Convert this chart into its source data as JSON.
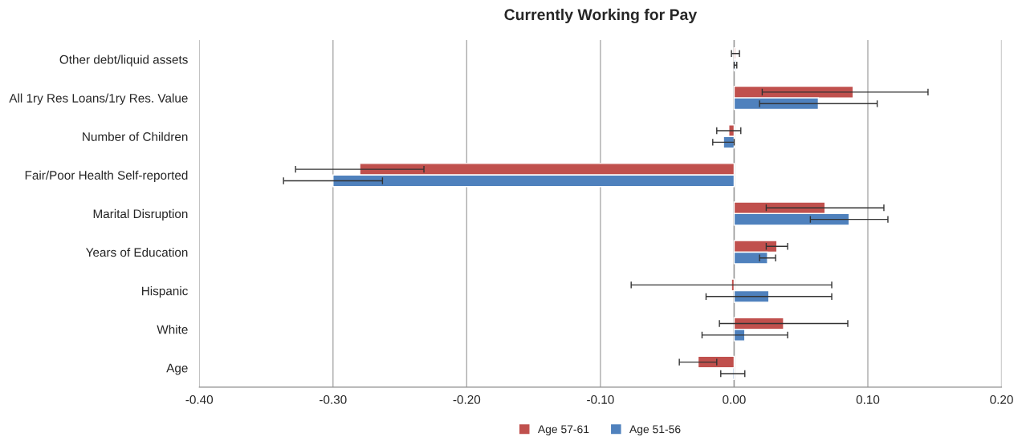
{
  "chart_data": {
    "type": "bar",
    "orientation": "horizontal",
    "title": "Currently Working for Pay",
    "categories": [
      "Other debt/liquid assets",
      "All 1ry Res Loans/1ry Res. Value",
      "Number of Children",
      "Fair/Poor Health Self-reported",
      "Marital Disruption",
      "Years of Education",
      "Hispanic",
      "White",
      "Age"
    ],
    "series": [
      {
        "name": "Age 57-61",
        "color": "#c0504d",
        "values": [
          0.001,
          0.089,
          -0.004,
          -0.28,
          0.068,
          0.032,
          -0.002,
          0.037,
          -0.027
        ],
        "errors": [
          0.003,
          [
            0.021,
            0.145
          ],
          0.009,
          0.048,
          0.044,
          0.008,
          0.075,
          0.048,
          0.014
        ]
      },
      {
        "name": "Age 51-56",
        "color": "#4f81bd",
        "values": [
          0.001,
          0.063,
          -0.008,
          -0.3,
          0.086,
          0.025,
          0.026,
          0.008,
          -0.001
        ],
        "errors": [
          0.001,
          0.044,
          0.008,
          0.037,
          0.029,
          0.006,
          0.047,
          0.032,
          0.009
        ]
      }
    ],
    "xlim": [
      -0.4,
      0.2
    ],
    "xticks": [
      {
        "value": -0.4,
        "label": "-0.40"
      },
      {
        "value": -0.3,
        "label": "-0.30"
      },
      {
        "value": -0.2,
        "label": "-0.20"
      },
      {
        "value": -0.1,
        "label": "-0.10"
      },
      {
        "value": 0,
        "label": "0.00"
      },
      {
        "value": 0.1,
        "label": "0.10"
      },
      {
        "value": 0.2,
        "label": "0.20"
      }
    ],
    "grid": "x",
    "legend": "bottom"
  }
}
